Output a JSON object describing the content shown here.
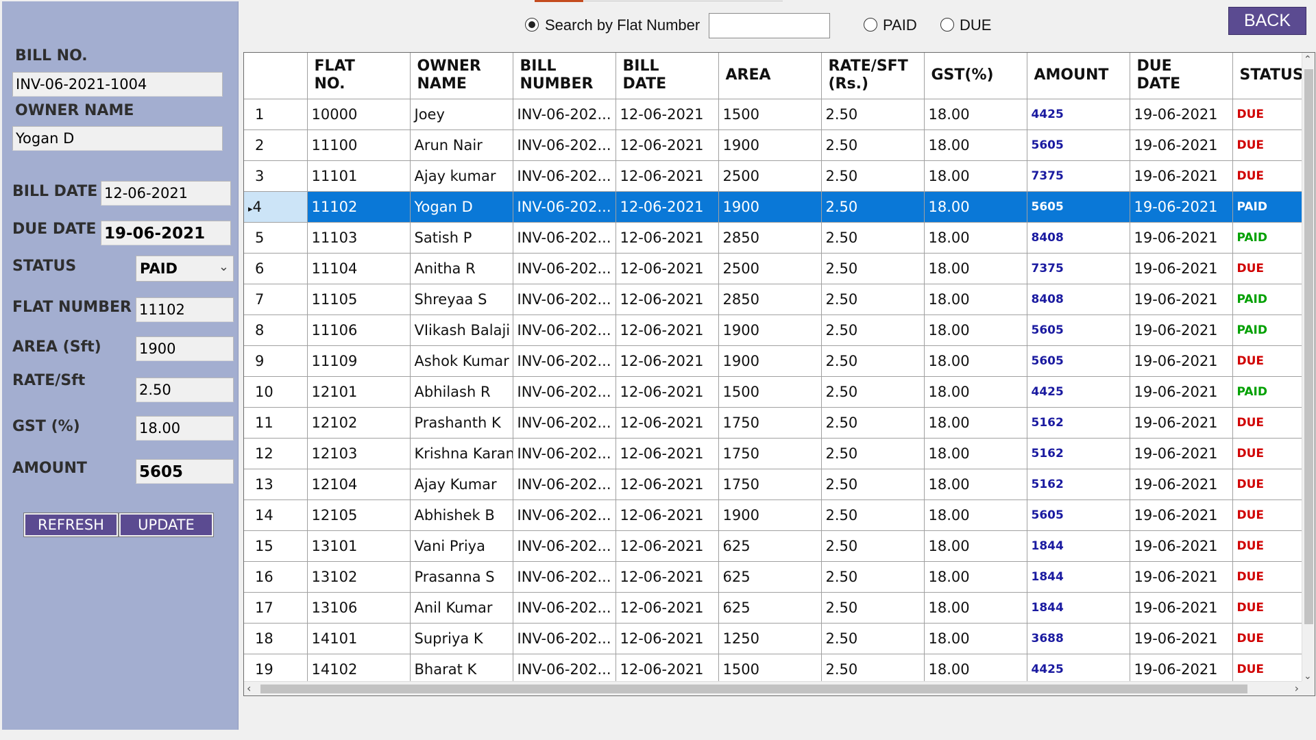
{
  "left_panel": {
    "bill_no_label": "BILL NO.",
    "bill_no_value": "INV-06-2021-1004",
    "owner_name_label": "OWNER NAME",
    "owner_name_value": "Yogan D",
    "bill_date_label": "BILL DATE",
    "bill_date_value": "12-06-2021",
    "due_date_label": "DUE DATE",
    "due_date_value": "19-06-2021",
    "status_label": "STATUS",
    "status_value": "PAID",
    "flat_number_label": "FLAT NUMBER",
    "flat_number_value": "11102",
    "area_label": "AREA (Sft)",
    "area_value": "1900",
    "rate_label": "RATE/Sft",
    "rate_value": "2.50",
    "gst_label": "GST (%)",
    "gst_value": "18.00",
    "amount_label": "AMOUNT",
    "amount_value": "5605",
    "refresh_label": "REFRESH",
    "update_label": "UPDATE"
  },
  "search": {
    "by_flat_label": "Search by Flat Number",
    "by_flat_selected": true,
    "input_value": "",
    "paid_label": "PAID",
    "due_label": "DUE"
  },
  "back_label": "BACK",
  "table": {
    "columns": [
      "",
      "FLAT\nNO.",
      "OWNER\nNAME",
      "BILL\nNUMBER",
      "BILL\nDATE",
      "AREA",
      "RATE/SFT\n(Rs.)",
      "GST(%)",
      "AMOUNT",
      "DUE\nDATE",
      "STATUS"
    ],
    "selected_row": 3,
    "rows": [
      [
        "1",
        "10000",
        "Joey",
        "INV-06-202...",
        "12-06-2021",
        "1500",
        "2.50",
        "18.00",
        "4425",
        "19-06-2021",
        "DUE"
      ],
      [
        "2",
        "11100",
        "Arun Nair",
        "INV-06-202...",
        "12-06-2021",
        "1900",
        "2.50",
        "18.00",
        "5605",
        "19-06-2021",
        "DUE"
      ],
      [
        "3",
        "11101",
        "Ajay kumar",
        "INV-06-202...",
        "12-06-2021",
        "2500",
        "2.50",
        "18.00",
        "7375",
        "19-06-2021",
        "DUE"
      ],
      [
        "4",
        "11102",
        "Yogan D",
        "INV-06-202...",
        "12-06-2021",
        "1900",
        "2.50",
        "18.00",
        "5605",
        "19-06-2021",
        "PAID"
      ],
      [
        "5",
        "11103",
        "Satish P",
        "INV-06-202...",
        "12-06-2021",
        "2850",
        "2.50",
        "18.00",
        "8408",
        "19-06-2021",
        "PAID"
      ],
      [
        "6",
        "11104",
        "Anitha R",
        "INV-06-202...",
        "12-06-2021",
        "2500",
        "2.50",
        "18.00",
        "7375",
        "19-06-2021",
        "DUE"
      ],
      [
        "7",
        "11105",
        "Shreyaa S",
        "INV-06-202...",
        "12-06-2021",
        "2850",
        "2.50",
        "18.00",
        "8408",
        "19-06-2021",
        "PAID"
      ],
      [
        "8",
        "11106",
        "VIikash Balaji",
        "INV-06-202...",
        "12-06-2021",
        "1900",
        "2.50",
        "18.00",
        "5605",
        "19-06-2021",
        "PAID"
      ],
      [
        "9",
        "11109",
        "Ashok Kumar",
        "INV-06-202...",
        "12-06-2021",
        "1900",
        "2.50",
        "18.00",
        "5605",
        "19-06-2021",
        "DUE"
      ],
      [
        "10",
        "12101",
        "Abhilash R",
        "INV-06-202...",
        "12-06-2021",
        "1500",
        "2.50",
        "18.00",
        "4425",
        "19-06-2021",
        "PAID"
      ],
      [
        "11",
        "12102",
        "Prashanth K",
        "INV-06-202...",
        "12-06-2021",
        "1750",
        "2.50",
        "18.00",
        "5162",
        "19-06-2021",
        "DUE"
      ],
      [
        "12",
        "12103",
        "Krishna Karan",
        "INV-06-202...",
        "12-06-2021",
        "1750",
        "2.50",
        "18.00",
        "5162",
        "19-06-2021",
        "DUE"
      ],
      [
        "13",
        "12104",
        "Ajay Kumar",
        "INV-06-202...",
        "12-06-2021",
        "1750",
        "2.50",
        "18.00",
        "5162",
        "19-06-2021",
        "DUE"
      ],
      [
        "14",
        "12105",
        "Abhishek B",
        "INV-06-202...",
        "12-06-2021",
        "1900",
        "2.50",
        "18.00",
        "5605",
        "19-06-2021",
        "DUE"
      ],
      [
        "15",
        "13101",
        "Vani Priya",
        "INV-06-202...",
        "12-06-2021",
        "625",
        "2.50",
        "18.00",
        "1844",
        "19-06-2021",
        "DUE"
      ],
      [
        "16",
        "13102",
        "Prasanna S",
        "INV-06-202...",
        "12-06-2021",
        "625",
        "2.50",
        "18.00",
        "1844",
        "19-06-2021",
        "DUE"
      ],
      [
        "17",
        "13106",
        "Anil Kumar",
        "INV-06-202...",
        "12-06-2021",
        "625",
        "2.50",
        "18.00",
        "1844",
        "19-06-2021",
        "DUE"
      ],
      [
        "18",
        "14101",
        "Supriya K",
        "INV-06-202...",
        "12-06-2021",
        "1250",
        "2.50",
        "18.00",
        "3688",
        "19-06-2021",
        "DUE"
      ],
      [
        "19",
        "14102",
        "Bharat K",
        "INV-06-202...",
        "12-06-2021",
        "1500",
        "2.50",
        "18.00",
        "4425",
        "19-06-2021",
        "DUE"
      ]
    ]
  },
  "colors": {
    "panel": "#a3aed0",
    "button": "#5b4b91",
    "selection": "#0a78d7",
    "due": "#d00000",
    "paid": "#00a000",
    "amount": "#1a1aa0"
  },
  "icons": {
    "row_indicator": "row-pointer-icon",
    "status_dropdown": "chevron-down-icon",
    "scroll_up": "scroll-up-icon",
    "scroll_down": "scroll-down-icon",
    "scroll_left": "scroll-left-icon",
    "scroll_right": "scroll-right-icon"
  }
}
